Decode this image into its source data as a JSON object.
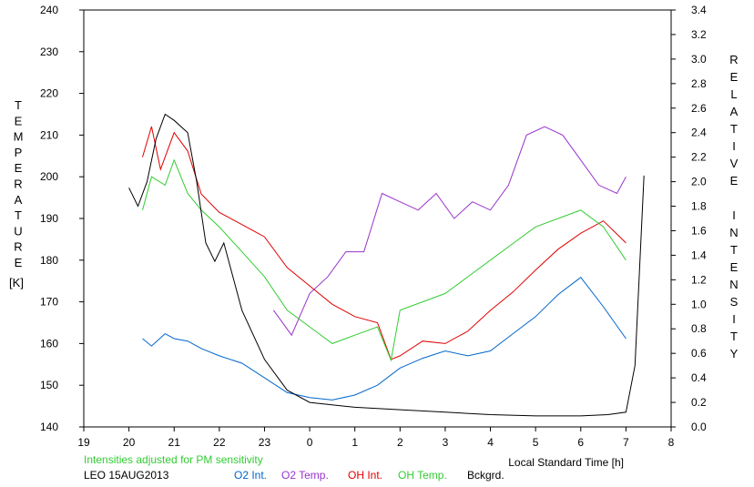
{
  "chart_data": {
    "type": "line",
    "left_axis": {
      "label": "TEMPERATURE",
      "unit": "[K]",
      "ticks": [
        "140",
        "150",
        "160",
        "170",
        "180",
        "190",
        "200",
        "210",
        "220",
        "230",
        "240"
      ],
      "ylim": [
        140,
        240
      ]
    },
    "right_axis": {
      "label": "RELATIVE INTENSITY",
      "ticks": [
        "0.0",
        "0.2",
        "0.4",
        "0.6",
        "0.8",
        "1.0",
        "1.2",
        "1.4",
        "1.6",
        "1.8",
        "2.0",
        "2.2",
        "2.4",
        "2.6",
        "2.8",
        "3.0",
        "3.2",
        "3.4"
      ],
      "ylim": [
        0,
        3.4
      ]
    },
    "x_axis": {
      "label": "Local Standard Time [h]",
      "ticks": [
        "19",
        "20",
        "21",
        "22",
        "23",
        "0",
        "1",
        "2",
        "3",
        "4",
        "5",
        "6",
        "7",
        "8"
      ]
    },
    "note": "Intensities adjusted for PM sensitivity",
    "station": "LEO 15AUG2013",
    "series": [
      {
        "name": "O2 Int.",
        "color": "#0066cc",
        "axis": "right",
        "x": [
          20.3,
          20.5,
          20.8,
          21.0,
          21.3,
          21.6,
          22.0,
          22.5,
          23.0,
          23.5,
          24.0,
          24.5,
          25.0,
          25.5,
          26.0,
          26.5,
          27.0,
          27.5,
          28.0,
          28.5,
          29.0,
          29.5,
          30.0,
          30.5,
          31.0
        ],
        "y": [
          0.72,
          0.66,
          0.76,
          0.72,
          0.7,
          0.64,
          0.58,
          0.52,
          0.4,
          0.28,
          0.24,
          0.22,
          0.26,
          0.34,
          0.48,
          0.56,
          0.62,
          0.58,
          0.62,
          0.76,
          0.9,
          1.08,
          1.22,
          0.98,
          0.72
        ]
      },
      {
        "name": "O2 Temp.",
        "color": "#9933cc",
        "axis": "left",
        "x": [
          23.2,
          23.6,
          24.0,
          24.4,
          24.8,
          25.2,
          25.6,
          26.0,
          26.4,
          26.8,
          27.2,
          27.6,
          28.0,
          28.4,
          28.8,
          29.2,
          29.6,
          30.0,
          30.4,
          30.8,
          31.0
        ],
        "y": [
          168,
          162,
          172,
          176,
          182,
          182,
          196,
          194,
          192,
          196,
          190,
          194,
          192,
          198,
          210,
          212,
          210,
          204,
          198,
          196,
          200
        ]
      },
      {
        "name": "OH Int.",
        "color": "#e00000",
        "axis": "right",
        "x": [
          20.3,
          20.5,
          20.7,
          21.0,
          21.3,
          21.6,
          22.0,
          22.5,
          23.0,
          23.5,
          24.0,
          24.5,
          25.0,
          25.5,
          25.8,
          26.0,
          26.5,
          27.0,
          27.5,
          28.0,
          28.5,
          29.0,
          29.5,
          30.0,
          30.5,
          31.0
        ],
        "y": [
          2.2,
          2.45,
          2.1,
          2.4,
          2.25,
          1.9,
          1.75,
          1.65,
          1.55,
          1.3,
          1.15,
          1.0,
          0.9,
          0.85,
          0.55,
          0.58,
          0.7,
          0.68,
          0.78,
          0.95,
          1.1,
          1.28,
          1.45,
          1.58,
          1.68,
          1.5
        ]
      },
      {
        "name": "OH Temp.",
        "color": "#33cc33",
        "axis": "left",
        "x": [
          20.3,
          20.5,
          20.8,
          21.0,
          21.3,
          21.6,
          22.0,
          22.5,
          23.0,
          23.5,
          24.0,
          24.5,
          25.0,
          25.5,
          25.8,
          26.0,
          26.5,
          27.0,
          27.5,
          28.0,
          28.5,
          29.0,
          29.5,
          30.0,
          30.5,
          31.0
        ],
        "y": [
          192,
          200,
          198,
          204,
          196,
          192,
          188,
          182,
          176,
          168,
          164,
          160,
          162,
          164,
          156,
          168,
          170,
          172,
          176,
          180,
          184,
          188,
          190,
          192,
          188,
          180
        ]
      },
      {
        "name": "Bckgrd.",
        "color": "#000000",
        "axis": "right",
        "x": [
          20.0,
          20.2,
          20.4,
          20.6,
          20.8,
          21.0,
          21.3,
          21.5,
          21.7,
          21.9,
          22.1,
          22.5,
          23.0,
          23.5,
          24.0,
          25.0,
          26.0,
          27.0,
          28.0,
          29.0,
          30.0,
          30.6,
          31.0,
          31.2,
          31.4
        ],
        "y": [
          1.95,
          1.8,
          2.0,
          2.35,
          2.55,
          2.5,
          2.4,
          2.0,
          1.5,
          1.35,
          1.5,
          0.95,
          0.55,
          0.3,
          0.2,
          0.16,
          0.14,
          0.12,
          0.1,
          0.09,
          0.09,
          0.1,
          0.12,
          0.5,
          2.05
        ]
      }
    ]
  }
}
